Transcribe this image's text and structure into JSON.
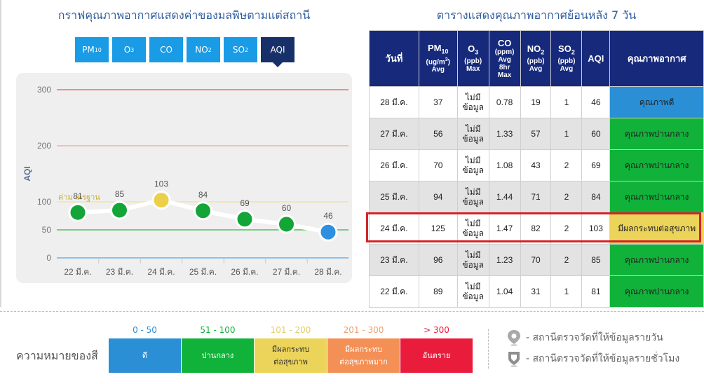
{
  "chart_section": {
    "title": "กราฟคุณภาพอากาศแสดงค่าของมลพิษตามแต่สถานี",
    "tabs": [
      {
        "base": "PM",
        "sub": "10"
      },
      {
        "base": "O",
        "sub": "3"
      },
      {
        "base": "CO",
        "sub": ""
      },
      {
        "base": "NO",
        "sub": "2"
      },
      {
        "base": "SO",
        "sub": "2"
      },
      {
        "base": "AQI",
        "sub": ""
      }
    ],
    "active_tab": "AQI"
  },
  "chart_data": {
    "type": "line",
    "categories": [
      "22 มี.ค.",
      "23 มี.ค.",
      "24 มี.ค.",
      "25 มี.ค.",
      "26 มี.ค.",
      "27 มี.ค.",
      "28 มี.ค."
    ],
    "series": [
      {
        "values": [
          81,
          85,
          103,
          84,
          69,
          60,
          46
        ]
      }
    ],
    "point_colors": [
      "#13a538",
      "#13a538",
      "#ead149",
      "#13a538",
      "#13a538",
      "#13a538",
      "#2d8fe0"
    ],
    "ylabel": "AQI",
    "ylim": [
      0,
      300
    ],
    "yticks": [
      0,
      50,
      100,
      200,
      300
    ],
    "reference_lines": [
      {
        "value": 300,
        "color": "#f06a6a"
      },
      {
        "value": 200,
        "color": "#f6b28f"
      },
      {
        "value": 100,
        "color": "#f0e3a0",
        "label": "ค่ามาตรฐาน"
      },
      {
        "value": 50,
        "color": "#4fc35a"
      },
      {
        "value": 0,
        "color": "#6cb4e6"
      }
    ]
  },
  "table_section": {
    "title": "ตารางแสดงคุณภาพอากาศย้อนหลัง 7 วัน",
    "headers": [
      {
        "main": "วันที่"
      },
      {
        "main": "PM",
        "sub": "10",
        "unit": "(ug/m",
        "unit_sup": "3",
        "unit_end": ")",
        "stat": "Avg"
      },
      {
        "main": "O",
        "sub": "3",
        "unit": "(ppb)",
        "stat": "Max"
      },
      {
        "main": "CO",
        "unit": "(ppm)",
        "stat": "Avg",
        "stat2": "8hr",
        "stat3": "Max"
      },
      {
        "main": "NO",
        "sub": "2",
        "unit": "(ppb)",
        "stat": "Avg"
      },
      {
        "main": "SO",
        "sub": "2",
        "unit": "(ppb)",
        "stat": "Avg"
      },
      {
        "main": "AQI"
      },
      {
        "main": "คุณภาพอากาศ"
      }
    ],
    "no_data": [
      "ไม่มี",
      "ข้อมูล"
    ],
    "rows": [
      {
        "date": "28 มี.ค.",
        "pm10": "37",
        "co": "0.78",
        "no2": "19",
        "so2": "1",
        "aqi": "46",
        "quality": "คุณภาพดี",
        "color": "#2b8fd6"
      },
      {
        "date": "27 มี.ค.",
        "pm10": "56",
        "co": "1.33",
        "no2": "57",
        "so2": "1",
        "aqi": "60",
        "quality": "คุณภาพปานกลาง",
        "color": "#10b23a"
      },
      {
        "date": "26 มี.ค.",
        "pm10": "70",
        "co": "1.08",
        "no2": "43",
        "so2": "2",
        "aqi": "69",
        "quality": "คุณภาพปานกลาง",
        "color": "#10b23a"
      },
      {
        "date": "25 มี.ค.",
        "pm10": "94",
        "co": "1.44",
        "no2": "71",
        "so2": "2",
        "aqi": "84",
        "quality": "คุณภาพปานกลาง",
        "color": "#10b23a"
      },
      {
        "date": "24 มี.ค.",
        "pm10": "125",
        "co": "1.47",
        "no2": "82",
        "so2": "2",
        "aqi": "103",
        "quality": "มีผลกระทบต่อสุขภาพ",
        "color": "#ecd359"
      },
      {
        "date": "23 มี.ค.",
        "pm10": "96",
        "co": "1.23",
        "no2": "70",
        "so2": "2",
        "aqi": "85",
        "quality": "คุณภาพปานกลาง",
        "color": "#10b23a"
      },
      {
        "date": "22 มี.ค.",
        "pm10": "89",
        "co": "1.04",
        "no2": "31",
        "so2": "1",
        "aqi": "81",
        "quality": "คุณภาพปานกลาง",
        "color": "#10b23a"
      }
    ]
  },
  "legend": {
    "title": "ความหมายของสี",
    "items": [
      {
        "range": "0 - 50",
        "line1": "ดี",
        "line2": "",
        "color": "#2b8fd6",
        "range_color": "#2b8fd6"
      },
      {
        "range": "51 - 100",
        "line1": "ปานกลาง",
        "line2": "",
        "color": "#10b23a",
        "range_color": "#10b23a"
      },
      {
        "range": "101 - 200",
        "line1": "มีผลกระทบ",
        "line2": "ต่อสุขภาพ",
        "color": "#ecd359",
        "range_color": "#e2cd6b"
      },
      {
        "range": "201 - 300",
        "line1": "มีผลกระทบ",
        "line2": "ต่อสุขภาพมาก",
        "color": "#f48f55",
        "range_color": "#f0a070"
      },
      {
        "range": "> 300",
        "line1": "อันตราย",
        "line2": "",
        "color": "#ea1c3c",
        "range_color": "#ea1c3c"
      }
    ],
    "stations": [
      {
        "label": "- สถานีตรวจวัดที่ให้ข้อมูลรายวัน",
        "icon": "map-pin-icon"
      },
      {
        "label": "- สถานีตรวจวัดที่ให้ข้อมูลรายชั่วโมง",
        "icon": "shield-pin-icon"
      }
    ]
  }
}
